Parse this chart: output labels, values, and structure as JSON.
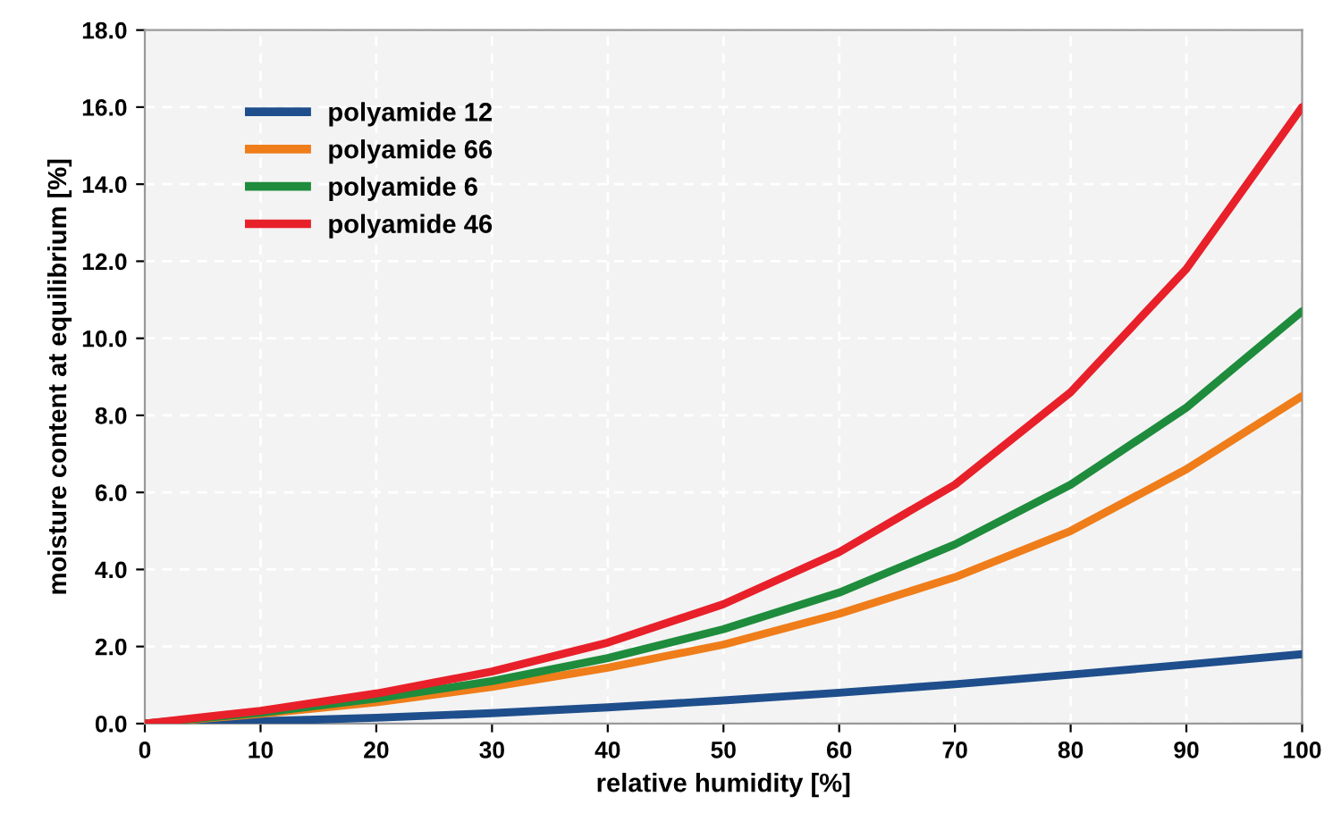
{
  "chart_data": {
    "type": "line",
    "xlabel": "relative humidity [%]",
    "ylabel": "moisture content at equilibrium [%]",
    "x": [
      0,
      10,
      20,
      30,
      40,
      50,
      60,
      70,
      80,
      90,
      100
    ],
    "series": [
      {
        "name": "polyamide 12",
        "color": "#1f4e8c",
        "values": [
          0,
          0.06,
          0.15,
          0.27,
          0.42,
          0.6,
          0.8,
          1.02,
          1.27,
          1.53,
          1.8
        ]
      },
      {
        "name": "polyamide 66",
        "color": "#ef7d1a",
        "values": [
          0,
          0.25,
          0.55,
          0.95,
          1.45,
          2.05,
          2.85,
          3.8,
          5.0,
          6.6,
          8.5
        ]
      },
      {
        "name": "polyamide 6",
        "color": "#1e8c3c",
        "values": [
          0,
          0.28,
          0.65,
          1.1,
          1.7,
          2.45,
          3.4,
          4.65,
          6.2,
          8.2,
          10.7
        ]
      },
      {
        "name": "polyamide 46",
        "color": "#e8202a",
        "values": [
          0,
          0.33,
          0.78,
          1.35,
          2.1,
          3.1,
          4.45,
          6.2,
          8.6,
          11.8,
          16.0
        ]
      }
    ],
    "xlim": [
      0,
      100
    ],
    "xticks": [
      0,
      10,
      20,
      30,
      40,
      50,
      60,
      70,
      80,
      90,
      100
    ],
    "ylim": [
      0,
      18
    ],
    "yticks": [
      {
        "value": 0,
        "label": "0.0"
      },
      {
        "value": 2,
        "label": "2.0"
      },
      {
        "value": 4,
        "label": "4.0"
      },
      {
        "value": 6,
        "label": "6.0"
      },
      {
        "value": 8,
        "label": "8.0"
      },
      {
        "value": 10,
        "label": "10.0"
      },
      {
        "value": 12,
        "label": "12.0"
      },
      {
        "value": 14,
        "label": "14.0"
      },
      {
        "value": 16,
        "label": "16.0"
      },
      {
        "value": 18,
        "label": "18.0"
      }
    ],
    "grid": true,
    "legend": "top left",
    "marker": "none",
    "line_style": "solid"
  }
}
